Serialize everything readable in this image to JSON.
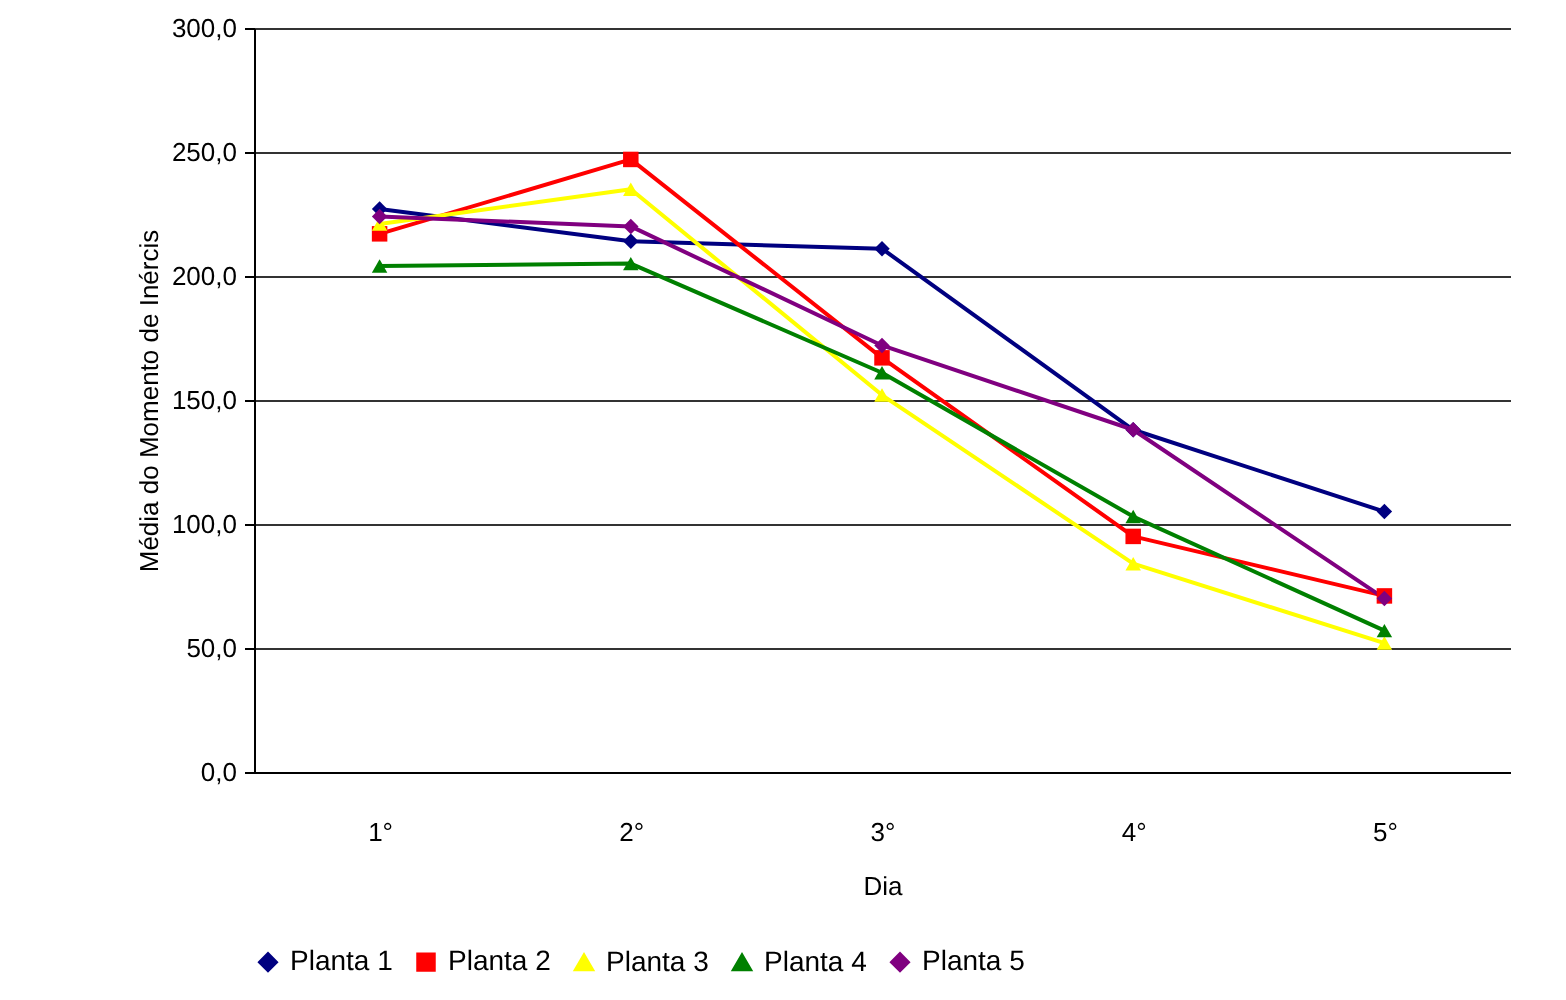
{
  "chart_data": {
    "type": "line",
    "xlabel": "Dia",
    "ylabel": "Média do Momento de Inércis",
    "categories": [
      "1°",
      "2°",
      "3°",
      "4°",
      "5°"
    ],
    "ylim": [
      0,
      300
    ],
    "yticks": [
      {
        "value": 0,
        "label": "0,0"
      },
      {
        "value": 50,
        "label": "50,0"
      },
      {
        "value": 100,
        "label": "100,0"
      },
      {
        "value": 150,
        "label": "150,0"
      },
      {
        "value": 200,
        "label": "200,0"
      },
      {
        "value": 250,
        "label": "250,0"
      },
      {
        "value": 300,
        "label": "300,0"
      }
    ],
    "grid": "y",
    "legend": "bottom",
    "line_style": "solid",
    "series": [
      {
        "name": "Planta 1",
        "color": "#000080",
        "marker": "diamond",
        "values": [
          227,
          214,
          211,
          138,
          105
        ]
      },
      {
        "name": "Planta 2",
        "color": "#ff0000",
        "marker": "square",
        "values": [
          217,
          247,
          167,
          95,
          71
        ]
      },
      {
        "name": "Planta 3",
        "color": "#ffff00",
        "marker": "triangle",
        "values": [
          221,
          235,
          152,
          84,
          52
        ]
      },
      {
        "name": "Planta 4",
        "color": "#008000",
        "marker": "triangle",
        "values": [
          204,
          205,
          161,
          103,
          57
        ]
      },
      {
        "name": "Planta 5",
        "color": "#800080",
        "marker": "diamond",
        "values": [
          224,
          220,
          172,
          138,
          70
        ]
      }
    ]
  }
}
